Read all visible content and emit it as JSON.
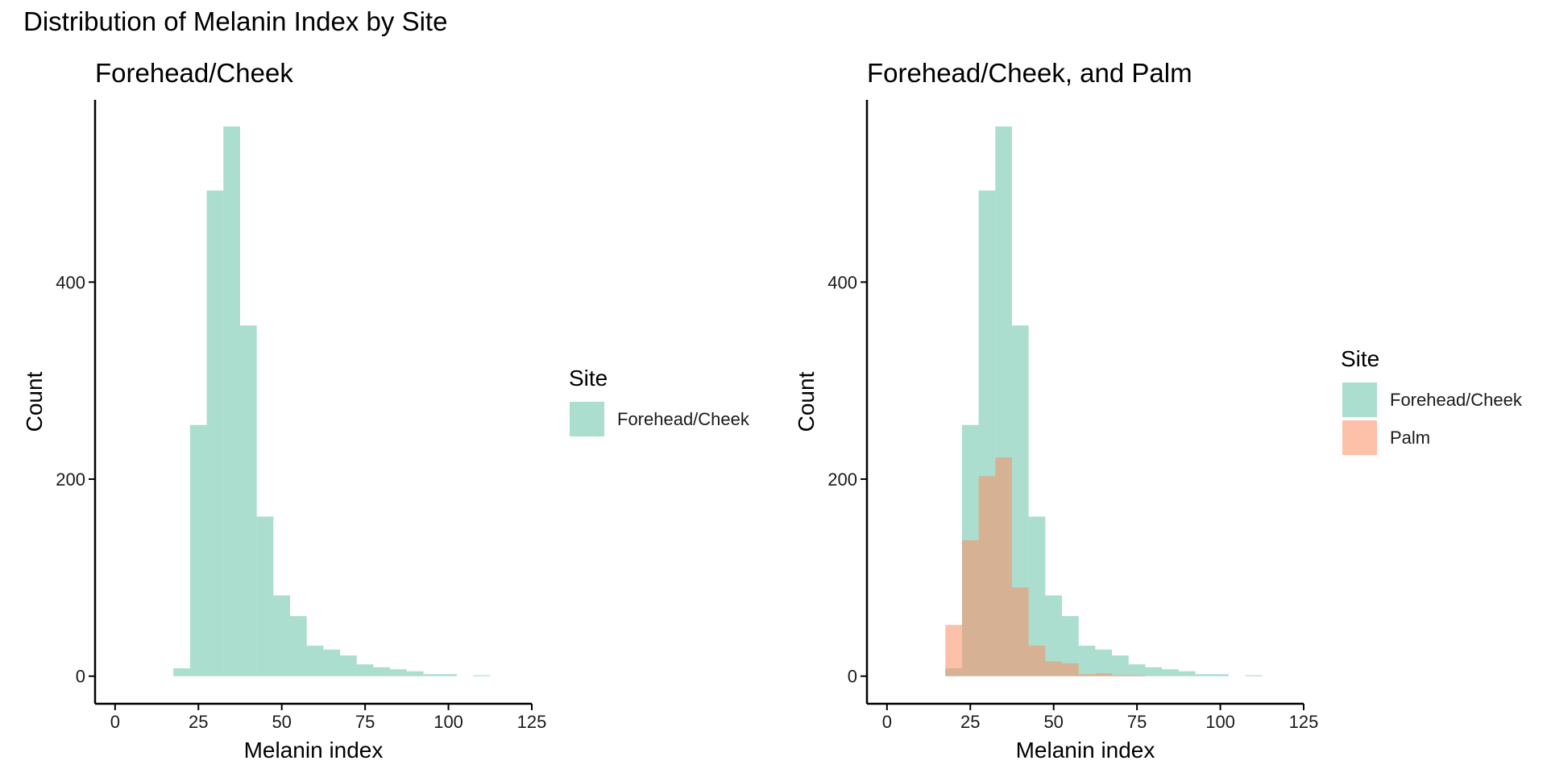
{
  "figure_title": "Distribution of Melanin Index by Site",
  "colors": {
    "forehead_cheek": "#66c2a5",
    "palm": "#fc8d62"
  },
  "chart_data": [
    {
      "type": "histogram",
      "title": "Forehead/Cheek",
      "xlabel": "Melanin index",
      "ylabel": "Count",
      "xlim": [
        -6,
        125
      ],
      "ylim": [
        -28,
        585
      ],
      "xticks": [
        0,
        25,
        50,
        75,
        100,
        125
      ],
      "yticks": [
        0,
        200,
        400
      ],
      "xtick_labels": [
        "0",
        "25",
        "50",
        "75",
        "100",
        "125"
      ],
      "ytick_labels": [
        "0",
        "200",
        "400"
      ],
      "legend": {
        "title": "Site",
        "position": "right",
        "entries": [
          "Forehead/Cheek"
        ]
      },
      "bins": [
        17.5,
        22.5,
        27.5,
        32.5,
        37.5,
        42.5,
        47.5,
        52.5,
        57.5,
        62.5,
        67.5,
        72.5,
        77.5,
        82.5,
        87.5,
        92.5,
        97.5,
        102.5,
        107.5,
        112.5
      ],
      "series": [
        {
          "name": "Forehead/Cheek",
          "color": "#66c2a5",
          "opacity": 0.55,
          "values": [
            8,
            255,
            493,
            558,
            356,
            162,
            82,
            61,
            31,
            27,
            21,
            12,
            9,
            7,
            5,
            2,
            2,
            0,
            1
          ]
        }
      ]
    },
    {
      "type": "histogram",
      "title": "Forehead/Cheek, and Palm",
      "xlabel": "Melanin index",
      "ylabel": "Count",
      "xlim": [
        -6,
        125
      ],
      "ylim": [
        -28,
        585
      ],
      "xticks": [
        0,
        25,
        50,
        75,
        100,
        125
      ],
      "yticks": [
        0,
        200,
        400
      ],
      "xtick_labels": [
        "0",
        "25",
        "50",
        "75",
        "100",
        "125"
      ],
      "ytick_labels": [
        "0",
        "200",
        "400"
      ],
      "legend": {
        "title": "Site",
        "position": "right",
        "entries": [
          "Forehead/Cheek",
          "Palm"
        ]
      },
      "bins": [
        17.5,
        22.5,
        27.5,
        32.5,
        37.5,
        42.5,
        47.5,
        52.5,
        57.5,
        62.5,
        67.5,
        72.5,
        77.5,
        82.5,
        87.5,
        92.5,
        97.5,
        102.5,
        107.5,
        112.5
      ],
      "series": [
        {
          "name": "Forehead/Cheek",
          "color": "#66c2a5",
          "opacity": 0.55,
          "values": [
            8,
            255,
            493,
            558,
            356,
            162,
            82,
            61,
            31,
            27,
            21,
            12,
            9,
            7,
            5,
            2,
            2,
            0,
            1
          ]
        },
        {
          "name": "Palm",
          "color": "#fc8d62",
          "opacity": 0.55,
          "values": [
            52,
            138,
            203,
            222,
            90,
            31,
            15,
            13,
            2,
            3,
            1,
            1,
            0,
            0,
            0,
            0,
            0,
            0,
            0
          ]
        }
      ]
    }
  ]
}
